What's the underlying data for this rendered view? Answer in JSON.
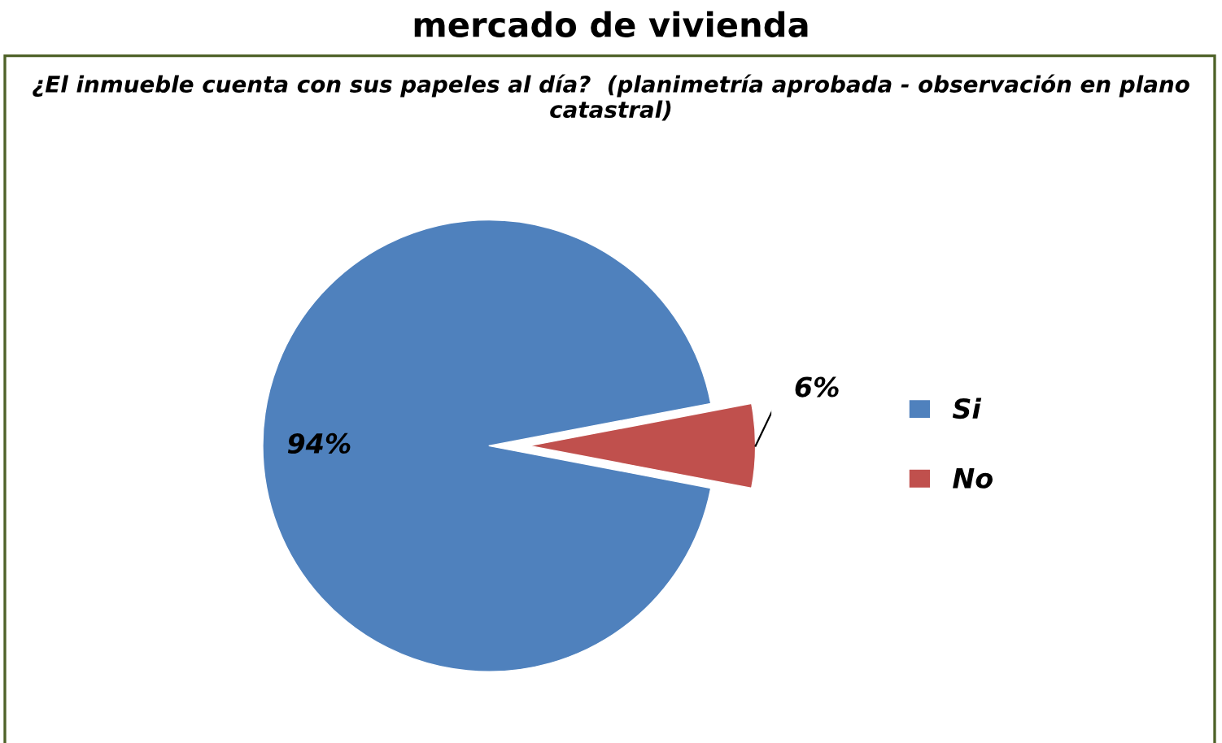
{
  "chart_data": {
    "type": "pie",
    "title": "¿El inmueble cuenta con sus papeles al día?  (planimetría aprobada - observación en plano catastral)",
    "annotations": [
      "mercado de vivienda"
    ],
    "categories": [
      "Si",
      "No"
    ],
    "values": [
      94,
      6
    ],
    "colors": [
      "#4f81bd",
      "#c0504d"
    ],
    "value_labels": [
      "94%",
      "6%"
    ],
    "legend": "right"
  }
}
